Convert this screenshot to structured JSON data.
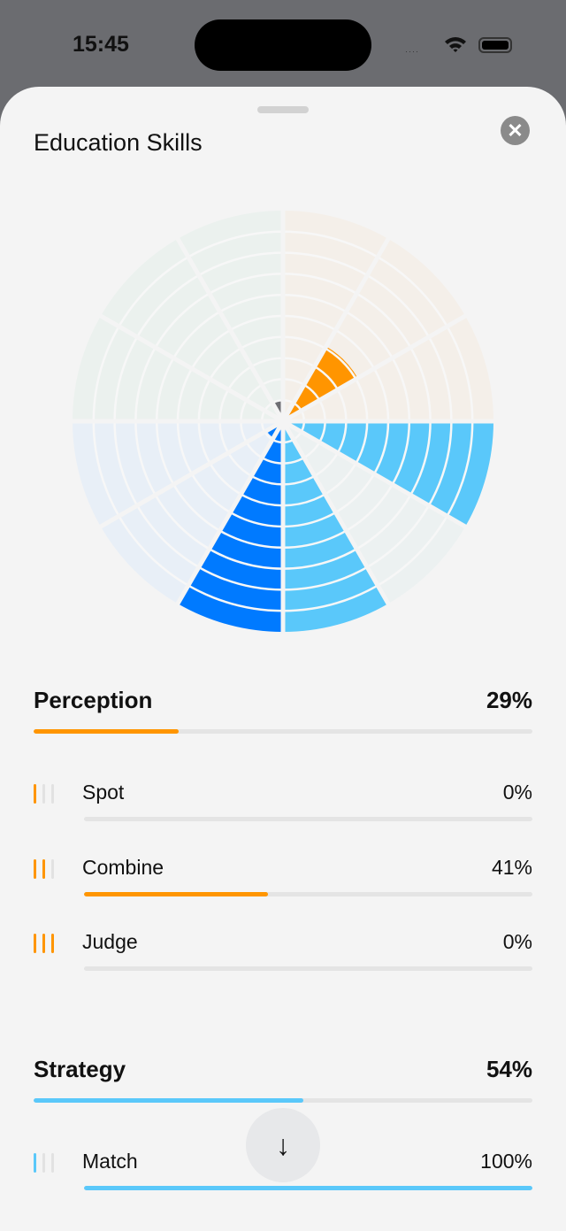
{
  "status_bar": {
    "time": "15:45",
    "signal": "····",
    "wifi_icon": "wifi-icon",
    "battery_icon": "battery-icon"
  },
  "sheet": {
    "title": "Education Skills",
    "close_icon": "close-icon",
    "scroll_down_icon": "arrow-down-icon",
    "scroll_down_glyph": "↓"
  },
  "colors": {
    "perception": "#ff9500",
    "strategy": "#5ac8fa",
    "group3": "#007aff",
    "group4": "#6e6e73"
  },
  "chart_data": {
    "type": "polar-area",
    "rings": 10,
    "range": [
      0,
      100
    ],
    "sectors": [
      {
        "group": "Perception",
        "value": 0,
        "color": "#ff9500",
        "bg": "#f4efe9"
      },
      {
        "group": "Perception",
        "value": 41,
        "color": "#ff9500",
        "bg": "#f4efe9"
      },
      {
        "group": "Perception",
        "value": 0,
        "color": "#ff9500",
        "bg": "#f4efe9"
      },
      {
        "group": "Strategy",
        "value": 100,
        "color": "#5ac8fa",
        "bg": "#ecf1f1"
      },
      {
        "group": "Strategy",
        "value": 0,
        "color": "#5ac8fa",
        "bg": "#ecf1f1"
      },
      {
        "group": "Strategy",
        "value": 100,
        "color": "#5ac8fa",
        "bg": "#ecf1f1"
      },
      {
        "value": 100,
        "color": "#007aff",
        "bg": "#e8eff7"
      },
      {
        "value": 9,
        "color": "#007aff",
        "bg": "#e8eff7"
      },
      {
        "value": 0,
        "color": "#007aff",
        "bg": "#e8eff7"
      },
      {
        "value": 0,
        "color": "#6e6e73",
        "bg": "#ebf1ee"
      },
      {
        "value": 0,
        "color": "#6e6e73",
        "bg": "#ebf1ee"
      },
      {
        "value": 10,
        "color": "#6e6e73",
        "bg": "#ebf1ee"
      }
    ]
  },
  "groups": [
    {
      "name": "Perception",
      "percent": "29%",
      "value": 29,
      "color": "#ff9500",
      "skills": [
        {
          "name": "Spot",
          "percent": "0%",
          "value": 0,
          "level": 1
        },
        {
          "name": "Combine",
          "percent": "41%",
          "value": 41,
          "level": 2
        },
        {
          "name": "Judge",
          "percent": "0%",
          "value": 0,
          "level": 3
        }
      ]
    },
    {
      "name": "Strategy",
      "percent": "54%",
      "value": 54,
      "color": "#5ac8fa",
      "skills": [
        {
          "name": "Match",
          "percent": "100%",
          "value": 100,
          "level": 1
        }
      ]
    }
  ]
}
